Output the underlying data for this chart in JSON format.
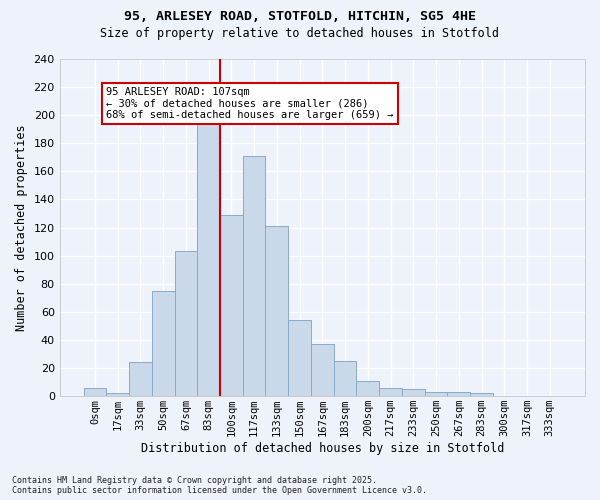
{
  "title1": "95, ARLESEY ROAD, STOTFOLD, HITCHIN, SG5 4HE",
  "title2": "Size of property relative to detached houses in Stotfold",
  "xlabel": "Distribution of detached houses by size in Stotfold",
  "ylabel": "Number of detached properties",
  "categories": [
    "0sqm",
    "17sqm",
    "33sqm",
    "50sqm",
    "67sqm",
    "83sqm",
    "100sqm",
    "117sqm",
    "133sqm",
    "150sqm",
    "167sqm",
    "183sqm",
    "200sqm",
    "217sqm",
    "233sqm",
    "250sqm",
    "267sqm",
    "283sqm",
    "300sqm",
    "317sqm",
    "333sqm"
  ],
  "values": [
    6,
    2,
    24,
    75,
    103,
    200,
    129,
    171,
    121,
    54,
    37,
    25,
    11,
    6,
    5,
    3,
    3,
    2,
    0,
    0,
    0
  ],
  "bar_color": "#c9d9ea",
  "bar_edge_color": "#8aaac8",
  "vline_x_index": 5.5,
  "vline_color": "#cc0000",
  "annotation_text": "95 ARLESEY ROAD: 107sqm\n← 30% of detached houses are smaller (286)\n68% of semi-detached houses are larger (659) →",
  "annotation_box_color": "#ffffff",
  "annotation_box_edge": "#cc0000",
  "bg_color": "#eef2fb",
  "grid_color": "#ffffff",
  "footer": "Contains HM Land Registry data © Crown copyright and database right 2025.\nContains public sector information licensed under the Open Government Licence v3.0.",
  "ylim": [
    0,
    240
  ],
  "yticks": [
    0,
    20,
    40,
    60,
    80,
    100,
    120,
    140,
    160,
    180,
    200,
    220,
    240
  ]
}
